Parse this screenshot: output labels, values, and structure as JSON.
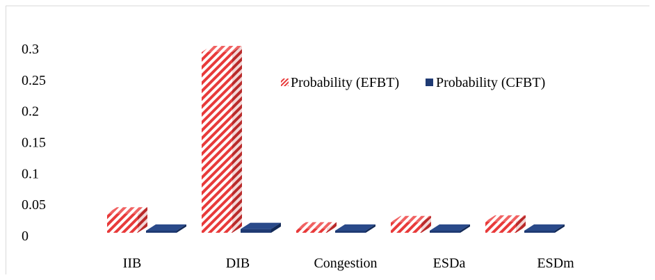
{
  "chart_data": {
    "type": "bar",
    "title": "",
    "xlabel": "",
    "ylabel": "",
    "categories": [
      "IIB",
      "DIB",
      "Congestion",
      "ESDa",
      "ESDm"
    ],
    "series": [
      {
        "name": "Probability (EFBT)",
        "values": [
          0.031,
          0.29,
          0.007,
          0.017,
          0.018
        ],
        "color": "#e83a3a",
        "pattern": "diagonal-stripes"
      },
      {
        "name": "Probability (CFBT)",
        "values": [
          0.0005,
          0.006,
          0.0005,
          0.0005,
          0.0005
        ],
        "color": "#1f3a73",
        "pattern": "solid"
      }
    ],
    "ylim": [
      0,
      0.3
    ],
    "yticks": [
      "0",
      "0.05",
      "0.1",
      "0.15",
      "0.2",
      "0.25",
      "0.3"
    ],
    "grid": false,
    "legend_position": "top-right",
    "style": "3d-column"
  }
}
